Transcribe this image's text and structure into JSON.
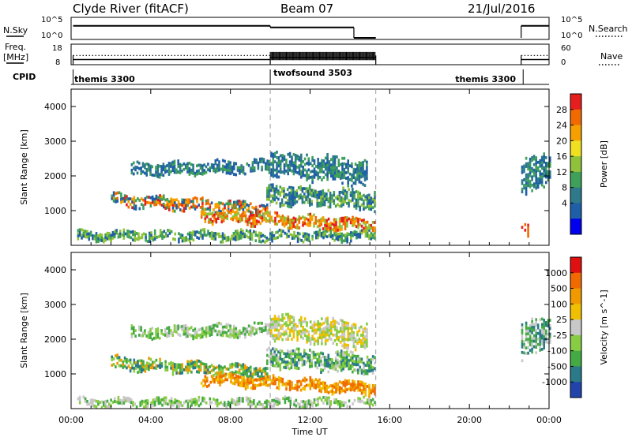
{
  "header": {
    "station": "Clyde River (fitACF)",
    "beam": "Beam 07",
    "date": "21/Jul/2016"
  },
  "nsky_panel": {
    "left_label": "N.Sky",
    "left_ticks": [
      "10^5",
      "10^0"
    ],
    "right_ticks": [
      "10^5",
      "10^0"
    ],
    "right_label": "N.Search"
  },
  "freq_panel": {
    "left_label_line1": "Freq.",
    "left_label_line2": "[MHz]",
    "left_ticks": [
      "18",
      "8"
    ],
    "right_ticks": [
      "60",
      "0"
    ],
    "right_label": "Nave"
  },
  "cpid_panel": {
    "label": "CPID",
    "modes": [
      {
        "name": "themis 3300",
        "start_hour": 0,
        "end_hour": 10
      },
      {
        "name": "twofsound 3503",
        "start_hour": 10,
        "end_hour": 22.7
      },
      {
        "name": "themis 3300",
        "start_hour": 22.7,
        "end_hour": 24
      }
    ]
  },
  "x_axis": {
    "label": "Time UT",
    "ticks": [
      "00:00",
      "04:00",
      "08:00",
      "12:00",
      "16:00",
      "20:00",
      "00:00"
    ],
    "range_hours": [
      0,
      24
    ]
  },
  "chart_data": [
    {
      "type": "line",
      "panel": "nsky_nsearch",
      "y_scale": "log",
      "ylim": [
        1,
        100000
      ],
      "series": [
        {
          "name": "N.Sky",
          "style": "solid",
          "segments": [
            {
              "x": [
                0.1,
                10.0
              ],
              "y": [
                3000,
                3000
              ]
            },
            {
              "x": [
                10.0,
                14.2
              ],
              "y": [
                1000,
                1000
              ]
            },
            {
              "x": [
                14.2,
                15.3
              ],
              "y": [
                1,
                1
              ]
            },
            {
              "x": [
                22.6,
                24.0
              ],
              "y": [
                3000,
                3000
              ]
            }
          ]
        },
        {
          "name": "N.Search",
          "style": "dotted",
          "segments": []
        }
      ]
    },
    {
      "type": "line",
      "panel": "freq_nave",
      "ylim": [
        8,
        18
      ],
      "series": [
        {
          "name": "Freq. [MHz]",
          "style": "solid",
          "segments": [
            {
              "x": [
                0.1,
                10.0
              ],
              "y": [
                10.5,
                10.5
              ]
            },
            {
              "x": [
                10.0,
                15.3
              ],
              "y": [
                11.5,
                11.5
              ]
            },
            {
              "x": [
                22.6,
                24.0
              ],
              "y": [
                10.5,
                10.5
              ]
            }
          ]
        },
        {
          "name": "Nave",
          "style": "dotted",
          "segments": [
            {
              "x": [
                0.1,
                10.0
              ],
              "y": [
                12.5,
                12.5
              ]
            },
            {
              "x": [
                22.6,
                24.0
              ],
              "y": [
                12.5,
                12.5
              ]
            }
          ]
        }
      ]
    },
    {
      "type": "heatmap",
      "panel": "power",
      "ylabel": "Slant Range [km]",
      "y_ticks": [
        "1000",
        "2000",
        "3000",
        "4000"
      ],
      "ylim": [
        0,
        4500
      ],
      "xlim": [
        0,
        24
      ],
      "colorbar": {
        "label": "Power [dB]",
        "ticks": [
          "28",
          "24",
          "20",
          "16",
          "12",
          "8",
          "4"
        ],
        "colors": [
          "#0000ee",
          "#1f5fa8",
          "#2e7a8a",
          "#3fa05a",
          "#8fc23a",
          "#f0e020",
          "#f5a000",
          "#f06a00",
          "#e61e1e"
        ]
      },
      "bands": [
        {
          "x": [
            0.3,
            15.2
          ],
          "y_center": [
            300,
            300
          ],
          "y_half": 120,
          "colors": [
            "#1f5fa8",
            "#3fa05a",
            "#8fc23a"
          ]
        },
        {
          "x": [
            2.0,
            9.8
          ],
          "y_center": [
            1350,
            1050
          ],
          "y_half": 160,
          "colors": [
            "#3fa05a",
            "#f06a00",
            "#e61e1e",
            "#f5a000",
            "#1f5fa8"
          ]
        },
        {
          "x": [
            6.5,
            15.2
          ],
          "y_center": [
            880,
            600
          ],
          "y_half": 150,
          "colors": [
            "#f06a00",
            "#e61e1e",
            "#f5a000",
            "#8fc23a"
          ]
        },
        {
          "x": [
            9.8,
            15.2
          ],
          "y_center": [
            1500,
            1300
          ],
          "y_half": 250,
          "colors": [
            "#2e7a8a",
            "#3fa05a",
            "#1f5fa8",
            "#8fc23a"
          ]
        },
        {
          "x": [
            3.0,
            10.0
          ],
          "y_center": [
            2200,
            2300
          ],
          "y_half": 160,
          "colors": [
            "#1f5fa8",
            "#3fa05a",
            "#2e7a8a"
          ]
        },
        {
          "x": [
            10.0,
            14.8
          ],
          "y_center": [
            2400,
            2100
          ],
          "y_half": 330,
          "colors": [
            "#2e7a8a",
            "#3fa05a",
            "#1f5fa8"
          ]
        },
        {
          "x": [
            22.6,
            24.0
          ],
          "y_center": [
            1900,
            2300
          ],
          "y_half": 450,
          "colors": [
            "#1f5fa8",
            "#2e7a8a",
            "#3fa05a"
          ]
        },
        {
          "x": [
            22.6,
            22.9
          ],
          "y_center": [
            400,
            400
          ],
          "y_half": 200,
          "colors": [
            "#e61e1e",
            "#f06a00"
          ]
        }
      ]
    },
    {
      "type": "heatmap",
      "panel": "velocity",
      "ylabel": "Slant Range [km]",
      "y_ticks": [
        "1000",
        "2000",
        "3000",
        "4000"
      ],
      "ylim": [
        0,
        4500
      ],
      "xlim": [
        0,
        24
      ],
      "colorbar": {
        "label": "Velocity [m s^-1]",
        "ticks": [
          "1000",
          "500",
          "100",
          "25",
          "-25",
          "-100",
          "-500",
          "-1000"
        ],
        "colors": [
          "#2244aa",
          "#2a7a8a",
          "#44aa44",
          "#88cc44",
          "#c8c8c8",
          "#f0c000",
          "#f09a00",
          "#f06a00",
          "#e01010"
        ]
      },
      "bands": [
        {
          "x": [
            0.3,
            15.2
          ],
          "y_center": [
            200,
            200
          ],
          "y_half": 100,
          "colors": [
            "#88cc44",
            "#44aa44",
            "#c8c8c8"
          ]
        },
        {
          "x": [
            2.0,
            9.8
          ],
          "y_center": [
            1350,
            1050
          ],
          "y_half": 160,
          "colors": [
            "#44aa44",
            "#88cc44",
            "#f09a00",
            "#2a7a8a"
          ]
        },
        {
          "x": [
            6.5,
            15.2
          ],
          "y_center": [
            880,
            600
          ],
          "y_half": 150,
          "colors": [
            "#f09a00",
            "#f06a00",
            "#f0c000"
          ]
        },
        {
          "x": [
            9.8,
            15.2
          ],
          "y_center": [
            1500,
            1300
          ],
          "y_half": 250,
          "colors": [
            "#44aa44",
            "#88cc44",
            "#c8c8c8",
            "#2a7a8a"
          ]
        },
        {
          "x": [
            3.0,
            10.0
          ],
          "y_center": [
            2200,
            2300
          ],
          "y_half": 160,
          "colors": [
            "#c8c8c8",
            "#88cc44",
            "#44aa44"
          ]
        },
        {
          "x": [
            10.0,
            14.8
          ],
          "y_center": [
            2400,
            2100
          ],
          "y_half": 330,
          "colors": [
            "#c8c8c8",
            "#88cc44",
            "#f0c000"
          ]
        },
        {
          "x": [
            22.6,
            24.0
          ],
          "y_center": [
            1900,
            2300
          ],
          "y_half": 450,
          "colors": [
            "#2a7a8a",
            "#44aa44",
            "#c8c8c8"
          ]
        }
      ]
    }
  ]
}
